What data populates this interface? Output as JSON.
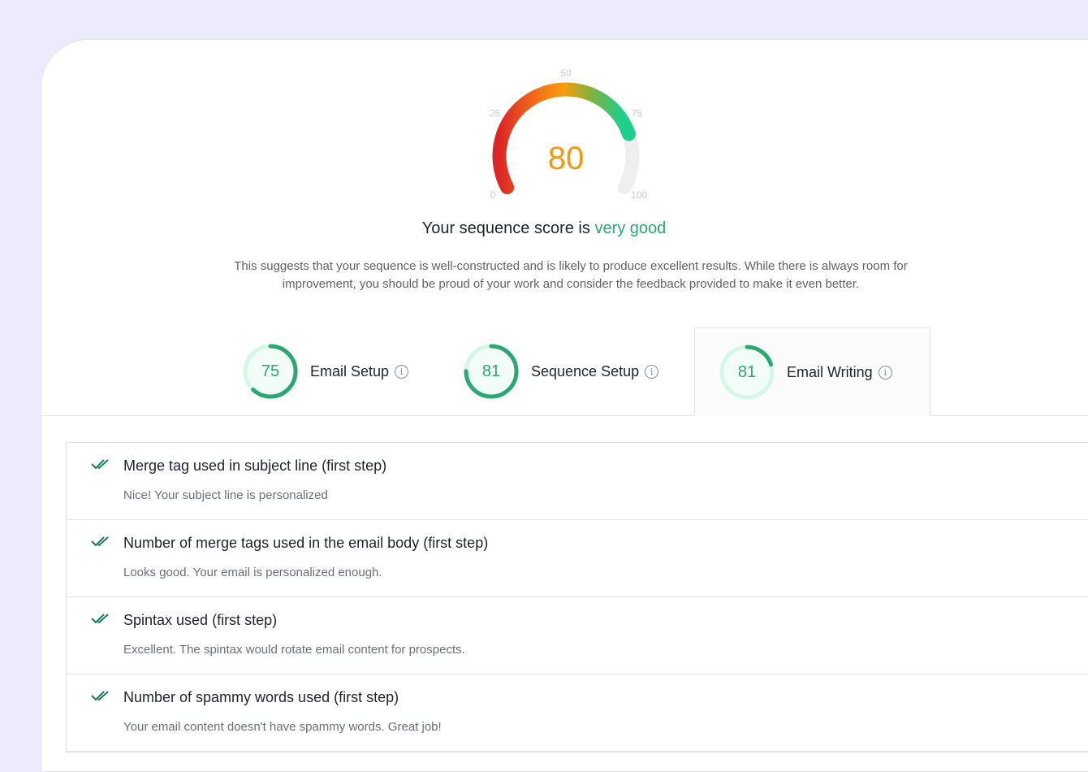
{
  "gauge": {
    "value": "80",
    "score": 80,
    "ticks": [
      "0",
      "25",
      "50",
      "75",
      "100"
    ],
    "value_color": "#f29a0e"
  },
  "headline": {
    "prefix": "Your sequence score is ",
    "rating": "very good"
  },
  "description": "This suggests that your sequence is well-constructed and is likely to produce excellent results. While there is always room for improvement, you should be proud of your work and consider the feedback provided to make it even better.",
  "tabs": [
    {
      "score": "75",
      "label": "Email Setup",
      "ring_fill": 0.62,
      "active": false
    },
    {
      "score": "81",
      "label": "Sequence Setup",
      "ring_fill": 0.75,
      "active": false
    },
    {
      "score": "81",
      "label": "Email Writing",
      "ring_fill": 0.2,
      "active": true
    }
  ],
  "info_glyph": "i",
  "accent": "#2aa872",
  "checks": [
    {
      "title": "Merge tag used in subject line (first step)",
      "detail": "Nice! Your subject line is personalized"
    },
    {
      "title": "Number of merge tags used in the email body (first step)",
      "detail": "Looks good. Your email is personalized enough."
    },
    {
      "title": "Spintax used (first step)",
      "detail": "Excellent. The spintax would rotate email content for prospects."
    },
    {
      "title": "Number of spammy words used (first step)",
      "detail": "Your email content doesn't have spammy words. Great job!"
    }
  ]
}
